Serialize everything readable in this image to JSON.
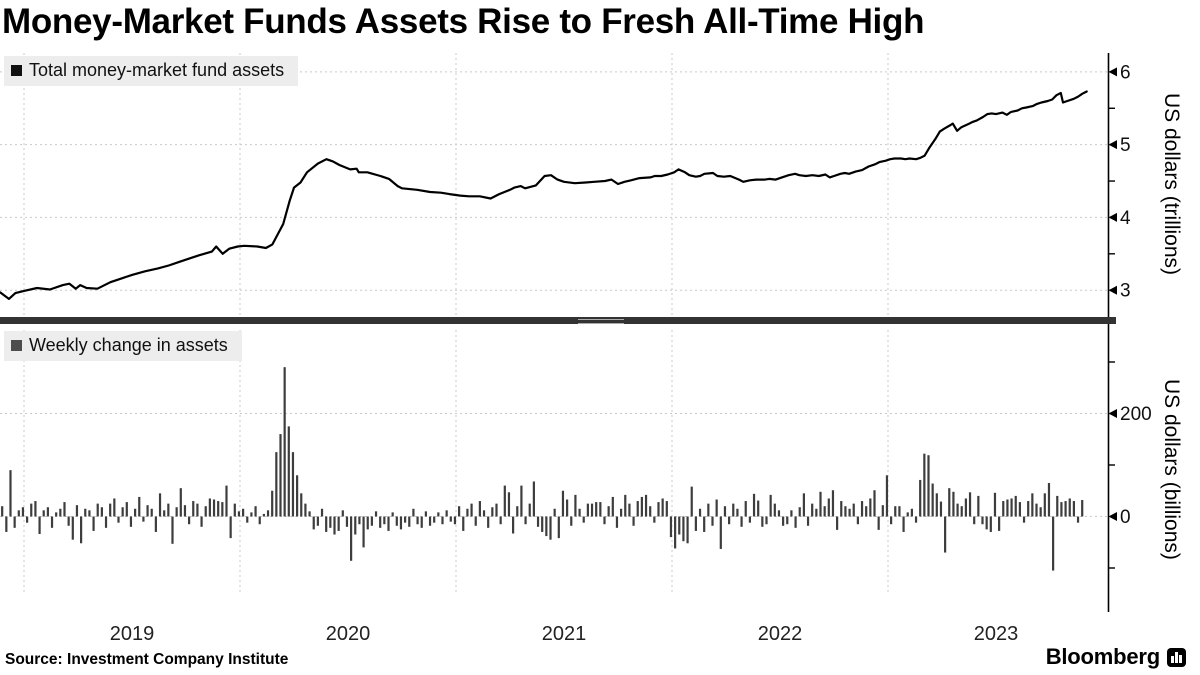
{
  "header": {
    "title": "Money-Market Funds Assets Rise to Fresh All-Time High"
  },
  "footer": {
    "source": "Source: Investment Company Institute",
    "brand": "Bloomberg"
  },
  "colors": {
    "line": "#000000",
    "bar": "#3d3d3d",
    "grid": "#c9c9c9",
    "axis": "#000000",
    "legend_bg": "#ededed",
    "swatch_line": "#111111",
    "swatch_bar": "#4d4d4d",
    "divider": "#333333"
  },
  "chart_data": [
    {
      "type": "line",
      "title": "Total money-market fund assets",
      "ylabel": "US dollars (trillions)",
      "ylim": [
        2.8,
        6.2
      ],
      "yticks_major": [
        6,
        5,
        4,
        3
      ],
      "ytick_labels": [
        "6",
        "5",
        "4",
        "3"
      ],
      "yticks_minor": [
        5.5,
        4.5,
        3.5
      ],
      "xlim": [
        2018.885,
        2024.0
      ],
      "x_gridline_years": [
        2019,
        2020,
        2021,
        2022,
        2023
      ],
      "x_tick_labels": [
        "2019",
        "2020",
        "2021",
        "2022",
        "2023"
      ],
      "grid": true,
      "legend_position": "top-left",
      "series": [
        {
          "name": "Total money-market fund assets",
          "points": [
            [
              2018.89,
              2.97
            ],
            [
              2018.93,
              2.88
            ],
            [
              2018.96,
              2.96
            ],
            [
              2019.0,
              2.99
            ],
            [
              2019.06,
              3.03
            ],
            [
              2019.12,
              3.01
            ],
            [
              2019.18,
              3.07
            ],
            [
              2019.21,
              3.09
            ],
            [
              2019.24,
              3.02
            ],
            [
              2019.26,
              3.07
            ],
            [
              2019.29,
              3.03
            ],
            [
              2019.34,
              3.02
            ],
            [
              2019.4,
              3.11
            ],
            [
              2019.45,
              3.16
            ],
            [
              2019.5,
              3.21
            ],
            [
              2019.56,
              3.26
            ],
            [
              2019.62,
              3.3
            ],
            [
              2019.67,
              3.34
            ],
            [
              2019.72,
              3.39
            ],
            [
              2019.77,
              3.44
            ],
            [
              2019.81,
              3.48
            ],
            [
              2019.87,
              3.53
            ],
            [
              2019.89,
              3.6
            ],
            [
              2019.92,
              3.5
            ],
            [
              2019.95,
              3.57
            ],
            [
              2019.99,
              3.6
            ],
            [
              2020.02,
              3.61
            ],
            [
              2020.08,
              3.6
            ],
            [
              2020.12,
              3.58
            ],
            [
              2020.15,
              3.63
            ],
            [
              2020.2,
              3.91
            ],
            [
              2020.23,
              4.23
            ],
            [
              2020.25,
              4.41
            ],
            [
              2020.28,
              4.48
            ],
            [
              2020.31,
              4.62
            ],
            [
              2020.36,
              4.74
            ],
            [
              2020.4,
              4.8
            ],
            [
              2020.43,
              4.77
            ],
            [
              2020.46,
              4.72
            ],
            [
              2020.51,
              4.66
            ],
            [
              2020.54,
              4.67
            ],
            [
              2020.55,
              4.62
            ],
            [
              2020.59,
              4.62
            ],
            [
              2020.65,
              4.57
            ],
            [
              2020.69,
              4.53
            ],
            [
              2020.73,
              4.43
            ],
            [
              2020.75,
              4.4
            ],
            [
              2020.82,
              4.38
            ],
            [
              2020.88,
              4.35
            ],
            [
              2020.93,
              4.34
            ],
            [
              2020.97,
              4.32
            ],
            [
              2021.02,
              4.3
            ],
            [
              2021.06,
              4.29
            ],
            [
              2021.11,
              4.29
            ],
            [
              2021.16,
              4.26
            ],
            [
              2021.2,
              4.32
            ],
            [
              2021.25,
              4.38
            ],
            [
              2021.27,
              4.41
            ],
            [
              2021.3,
              4.43
            ],
            [
              2021.32,
              4.4
            ],
            [
              2021.37,
              4.44
            ],
            [
              2021.41,
              4.57
            ],
            [
              2021.44,
              4.58
            ],
            [
              2021.47,
              4.52
            ],
            [
              2021.5,
              4.49
            ],
            [
              2021.55,
              4.47
            ],
            [
              2021.6,
              4.48
            ],
            [
              2021.64,
              4.49
            ],
            [
              2021.69,
              4.5
            ],
            [
              2021.72,
              4.52
            ],
            [
              2021.75,
              4.46
            ],
            [
              2021.78,
              4.49
            ],
            [
              2021.81,
              4.51
            ],
            [
              2021.85,
              4.54
            ],
            [
              2021.9,
              4.55
            ],
            [
              2021.92,
              4.57
            ],
            [
              2021.95,
              4.57
            ],
            [
              2021.98,
              4.59
            ],
            [
              2022.01,
              4.62
            ],
            [
              2022.03,
              4.66
            ],
            [
              2022.06,
              4.62
            ],
            [
              2022.08,
              4.58
            ],
            [
              2022.11,
              4.56
            ],
            [
              2022.13,
              4.57
            ],
            [
              2022.15,
              4.6
            ],
            [
              2022.19,
              4.61
            ],
            [
              2022.21,
              4.57
            ],
            [
              2022.24,
              4.56
            ],
            [
              2022.27,
              4.57
            ],
            [
              2022.31,
              4.52
            ],
            [
              2022.33,
              4.49
            ],
            [
              2022.36,
              4.51
            ],
            [
              2022.39,
              4.52
            ],
            [
              2022.43,
              4.52
            ],
            [
              2022.45,
              4.53
            ],
            [
              2022.48,
              4.52
            ],
            [
              2022.5,
              4.54
            ],
            [
              2022.54,
              4.58
            ],
            [
              2022.57,
              4.6
            ],
            [
              2022.59,
              4.58
            ],
            [
              2022.62,
              4.57
            ],
            [
              2022.65,
              4.58
            ],
            [
              2022.68,
              4.57
            ],
            [
              2022.71,
              4.59
            ],
            [
              2022.73,
              4.55
            ],
            [
              2022.75,
              4.57
            ],
            [
              2022.78,
              4.6
            ],
            [
              2022.8,
              4.61
            ],
            [
              2022.82,
              4.6
            ],
            [
              2022.85,
              4.63
            ],
            [
              2022.88,
              4.65
            ],
            [
              2022.91,
              4.7
            ],
            [
              2022.94,
              4.73
            ],
            [
              2022.96,
              4.76
            ],
            [
              2022.99,
              4.78
            ],
            [
              2023.01,
              4.8
            ],
            [
              2023.03,
              4.81
            ],
            [
              2023.06,
              4.81
            ],
            [
              2023.08,
              4.8
            ],
            [
              2023.1,
              4.81
            ],
            [
              2023.13,
              4.8
            ],
            [
              2023.15,
              4.82
            ],
            [
              2023.17,
              4.85
            ],
            [
              2023.19,
              4.95
            ],
            [
              2023.22,
              5.08
            ],
            [
              2023.24,
              5.18
            ],
            [
              2023.26,
              5.22
            ],
            [
              2023.29,
              5.27
            ],
            [
              2023.3,
              5.29
            ],
            [
              2023.32,
              5.19
            ],
            [
              2023.34,
              5.24
            ],
            [
              2023.37,
              5.28
            ],
            [
              2023.39,
              5.31
            ],
            [
              2023.41,
              5.33
            ],
            [
              2023.44,
              5.38
            ],
            [
              2023.46,
              5.42
            ],
            [
              2023.48,
              5.43
            ],
            [
              2023.5,
              5.42
            ],
            [
              2023.53,
              5.44
            ],
            [
              2023.55,
              5.41
            ],
            [
              2023.57,
              5.45
            ],
            [
              2023.6,
              5.47
            ],
            [
              2023.62,
              5.5
            ],
            [
              2023.64,
              5.51
            ],
            [
              2023.67,
              5.53
            ],
            [
              2023.69,
              5.56
            ],
            [
              2023.71,
              5.58
            ],
            [
              2023.74,
              5.6
            ],
            [
              2023.76,
              5.62
            ],
            [
              2023.78,
              5.68
            ],
            [
              2023.8,
              5.71
            ],
            [
              2023.81,
              5.58
            ],
            [
              2023.83,
              5.6
            ],
            [
              2023.86,
              5.63
            ],
            [
              2023.88,
              5.66
            ],
            [
              2023.9,
              5.7
            ],
            [
              2023.92,
              5.73
            ]
          ]
        }
      ]
    },
    {
      "type": "bar",
      "title": "Weekly change in assets",
      "ylabel": "US dollars (billions)",
      "ylim": [
        -190,
        360
      ],
      "yticks_major": [
        200,
        0
      ],
      "ytick_labels": [
        "200",
        "0"
      ],
      "yticks_minor": [
        300,
        100,
        -100
      ],
      "x_start": 2018.899,
      "x_step_years": 0.019231,
      "values": [
        20,
        -30,
        90,
        -22,
        12,
        18,
        -12,
        25,
        30,
        -34,
        12,
        18,
        -22,
        8,
        15,
        28,
        -18,
        -45,
        22,
        -52,
        15,
        12,
        -28,
        25,
        18,
        -22,
        25,
        35,
        -12,
        18,
        28,
        -20,
        15,
        38,
        -10,
        22,
        15,
        -30,
        45,
        12,
        25,
        -53,
        18,
        55,
        22,
        -15,
        30,
        25,
        -20,
        20,
        35,
        33,
        30,
        28,
        60,
        -42,
        25,
        10,
        15,
        -12,
        8,
        20,
        -15,
        5,
        12,
        50,
        125,
        160,
        290,
        175,
        125,
        80,
        45,
        25,
        10,
        -25,
        -18,
        15,
        -30,
        -22,
        -35,
        -28,
        12,
        -20,
        -86,
        -35,
        -15,
        -60,
        -25,
        -18,
        10,
        -22,
        -15,
        -28,
        8,
        -18,
        -25,
        -12,
        -20,
        15,
        -15,
        -22,
        10,
        -18,
        -12,
        8,
        -15,
        12,
        -10,
        -15,
        20,
        -28,
        15,
        25,
        -18,
        30,
        12,
        -22,
        18,
        25,
        -15,
        60,
        47,
        -33,
        20,
        60,
        -15,
        25,
        68,
        -20,
        -30,
        -38,
        -45,
        15,
        -42,
        50,
        33,
        -18,
        42,
        15,
        -12,
        25,
        25,
        28,
        28,
        -15,
        20,
        38,
        -22,
        15,
        42,
        25,
        -18,
        30,
        38,
        42,
        20,
        -12,
        28,
        35,
        30,
        -40,
        -62,
        -35,
        -48,
        -52,
        58,
        -28,
        15,
        -30,
        25,
        -18,
        33,
        -63,
        20,
        -15,
        25,
        15,
        -20,
        30,
        -12,
        44,
        31,
        -20,
        -15,
        42,
        25,
        12,
        -18,
        -15,
        12,
        -22,
        18,
        45,
        -18,
        25,
        15,
        48,
        20,
        35,
        51,
        -26,
        30,
        20,
        15,
        25,
        -15,
        30,
        20,
        35,
        51,
        -26,
        22,
        80,
        -15,
        20,
        20,
        -30,
        8,
        15,
        -12,
        71,
        122,
        119,
        64,
        45,
        29,
        -70,
        55,
        48,
        25,
        20,
        35,
        47,
        -15,
        40,
        -15,
        -25,
        -30,
        46,
        -28,
        30,
        33,
        35,
        40,
        28,
        -12,
        30,
        45,
        25,
        18,
        45,
        65,
        -105,
        40,
        28,
        30,
        35,
        30,
        -12,
        32
      ]
    }
  ]
}
